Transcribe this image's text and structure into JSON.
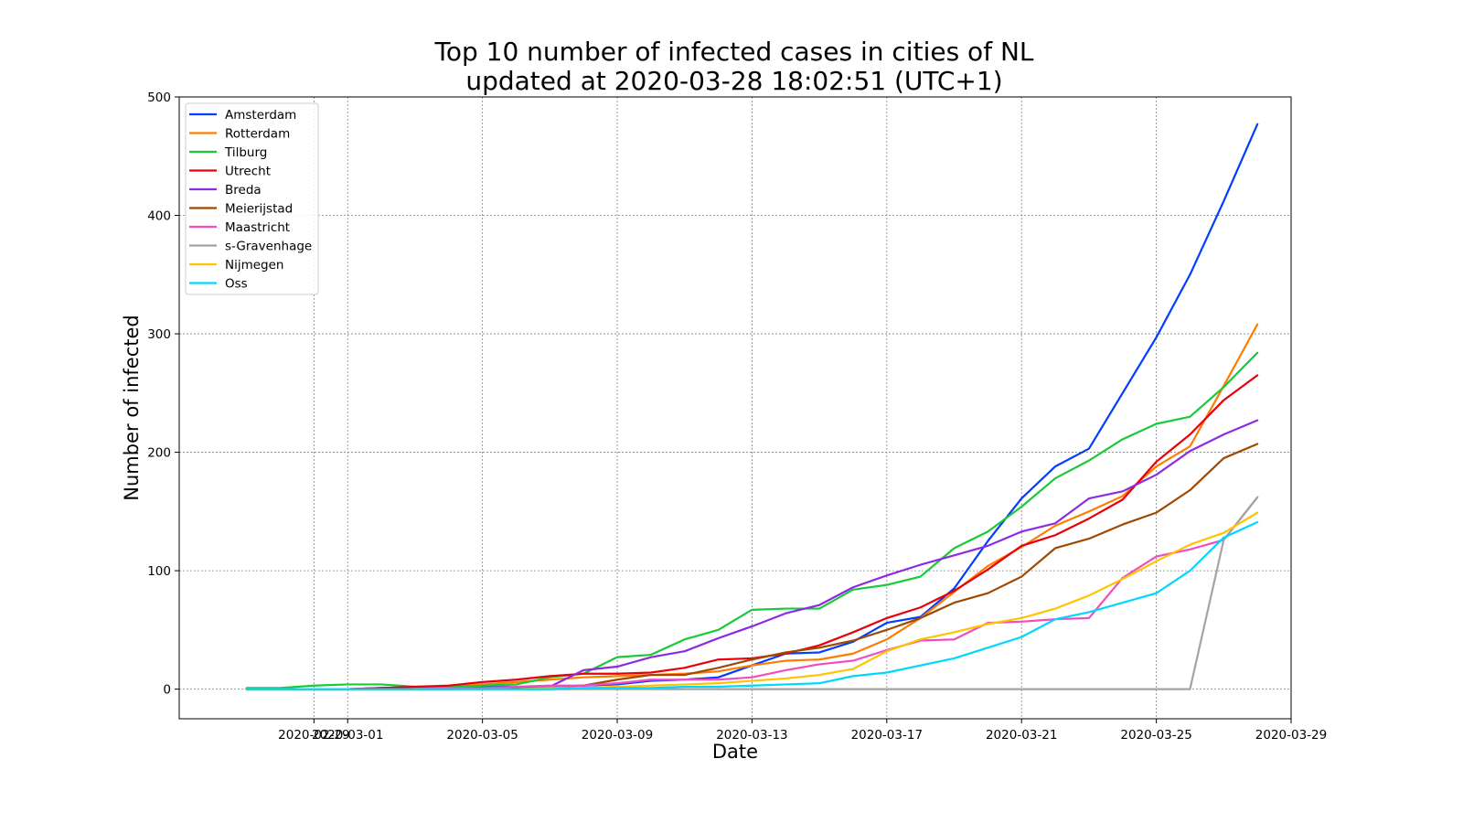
{
  "chart_data": {
    "type": "line",
    "title": "Top 10 number of infected cases in cities of NL",
    "subtitle": "updated at 2020-03-28 18:02:51 (UTC+1)",
    "xlabel": "Date",
    "ylabel": "Number of infected",
    "ylim": [
      -25,
      500
    ],
    "yticks": [
      0,
      100,
      200,
      300,
      400,
      500
    ],
    "xlim": [
      "2020-02-25",
      "2020-03-29"
    ],
    "xticks": [
      "2020-02-29",
      "2020-03-01",
      "2020-03-05",
      "2020-03-09",
      "2020-03-13",
      "2020-03-17",
      "2020-03-21",
      "2020-03-25",
      "2020-03-29"
    ],
    "grid": true,
    "legend_position": "upper-left",
    "x": [
      "2020-02-27",
      "2020-02-28",
      "2020-02-29",
      "2020-03-01",
      "2020-03-02",
      "2020-03-03",
      "2020-03-04",
      "2020-03-05",
      "2020-03-06",
      "2020-03-07",
      "2020-03-08",
      "2020-03-09",
      "2020-03-10",
      "2020-03-11",
      "2020-03-12",
      "2020-03-13",
      "2020-03-14",
      "2020-03-15",
      "2020-03-16",
      "2020-03-17",
      "2020-03-18",
      "2020-03-19",
      "2020-03-20",
      "2020-03-21",
      "2020-03-22",
      "2020-03-23",
      "2020-03-24",
      "2020-03-25",
      "2020-03-26",
      "2020-03-27",
      "2020-03-28"
    ],
    "series": [
      {
        "name": "Amsterdam",
        "color": "#023eff",
        "values": [
          0,
          0,
          0,
          0,
          1,
          1,
          1,
          2,
          2,
          2,
          3,
          4,
          7,
          8,
          10,
          20,
          30,
          31,
          40,
          56,
          61,
          85,
          125,
          161,
          188,
          203,
          250,
          297,
          350,
          412,
          477
        ]
      },
      {
        "name": "Rotterdam",
        "color": "#ff7c00",
        "values": [
          0,
          0,
          0,
          0,
          1,
          1,
          2,
          4,
          6,
          8,
          10,
          11,
          12,
          13,
          15,
          20,
          24,
          25,
          30,
          42,
          60,
          82,
          104,
          120,
          138,
          150,
          163,
          188,
          205,
          256,
          308
        ]
      },
      {
        "name": "Tilburg",
        "color": "#1ac938",
        "values": [
          1,
          1,
          3,
          4,
          4,
          2,
          2,
          3,
          4,
          10,
          13,
          27,
          29,
          42,
          50,
          67,
          68,
          68,
          84,
          88,
          95,
          119,
          133,
          154,
          178,
          193,
          211,
          224,
          230,
          255,
          284
        ]
      },
      {
        "name": "Utrecht",
        "color": "#e8000b",
        "values": [
          0,
          0,
          0,
          0,
          1,
          2,
          3,
          6,
          8,
          11,
          13,
          13,
          14,
          18,
          25,
          26,
          30,
          37,
          48,
          60,
          69,
          83,
          101,
          121,
          130,
          144,
          160,
          192,
          215,
          244,
          265
        ]
      },
      {
        "name": "Breda",
        "color": "#8b2be2",
        "values": [
          0,
          0,
          0,
          0,
          0,
          0,
          0,
          1,
          1,
          2,
          16,
          19,
          27,
          32,
          43,
          53,
          64,
          71,
          86,
          96,
          105,
          113,
          121,
          133,
          140,
          161,
          167,
          181,
          201,
          215,
          227
        ]
      },
      {
        "name": "Meierijstad",
        "color": "#9f4800",
        "values": [
          0,
          0,
          0,
          0,
          0,
          0,
          0,
          1,
          1,
          2,
          3,
          8,
          12,
          12,
          18,
          25,
          31,
          35,
          41,
          50,
          60,
          73,
          81,
          95,
          119,
          127,
          139,
          149,
          168,
          195,
          207
        ]
      },
      {
        "name": "Maastricht",
        "color": "#f14cc1",
        "values": [
          0,
          0,
          0,
          0,
          0,
          0,
          1,
          1,
          2,
          3,
          3,
          5,
          8,
          8,
          8,
          10,
          16,
          21,
          24,
          33,
          41,
          42,
          56,
          57,
          59,
          60,
          94,
          112,
          118,
          126,
          162
        ]
      },
      {
        "name": "s-Gravenhage",
        "color": "#a3a3a3",
        "values": [
          0,
          0,
          0,
          0,
          0,
          0,
          0,
          0,
          0,
          0,
          0,
          0,
          0,
          0,
          0,
          0,
          0,
          0,
          0,
          0,
          0,
          0,
          0,
          0,
          0,
          0,
          0,
          0,
          0,
          126,
          162
        ]
      },
      {
        "name": "Nijmegen",
        "color": "#ffc400",
        "values": [
          0,
          0,
          0,
          0,
          0,
          0,
          0,
          0,
          0,
          1,
          1,
          2,
          3,
          4,
          5,
          7,
          9,
          12,
          17,
          32,
          42,
          48,
          55,
          60,
          68,
          79,
          93,
          108,
          122,
          132,
          149
        ]
      },
      {
        "name": "Oss",
        "color": "#00d7ff",
        "values": [
          0,
          0,
          0,
          0,
          0,
          0,
          0,
          0,
          0,
          0,
          1,
          1,
          1,
          2,
          2,
          3,
          4,
          5,
          11,
          14,
          20,
          26,
          35,
          44,
          59,
          65,
          73,
          81,
          100,
          128,
          141
        ]
      }
    ]
  }
}
